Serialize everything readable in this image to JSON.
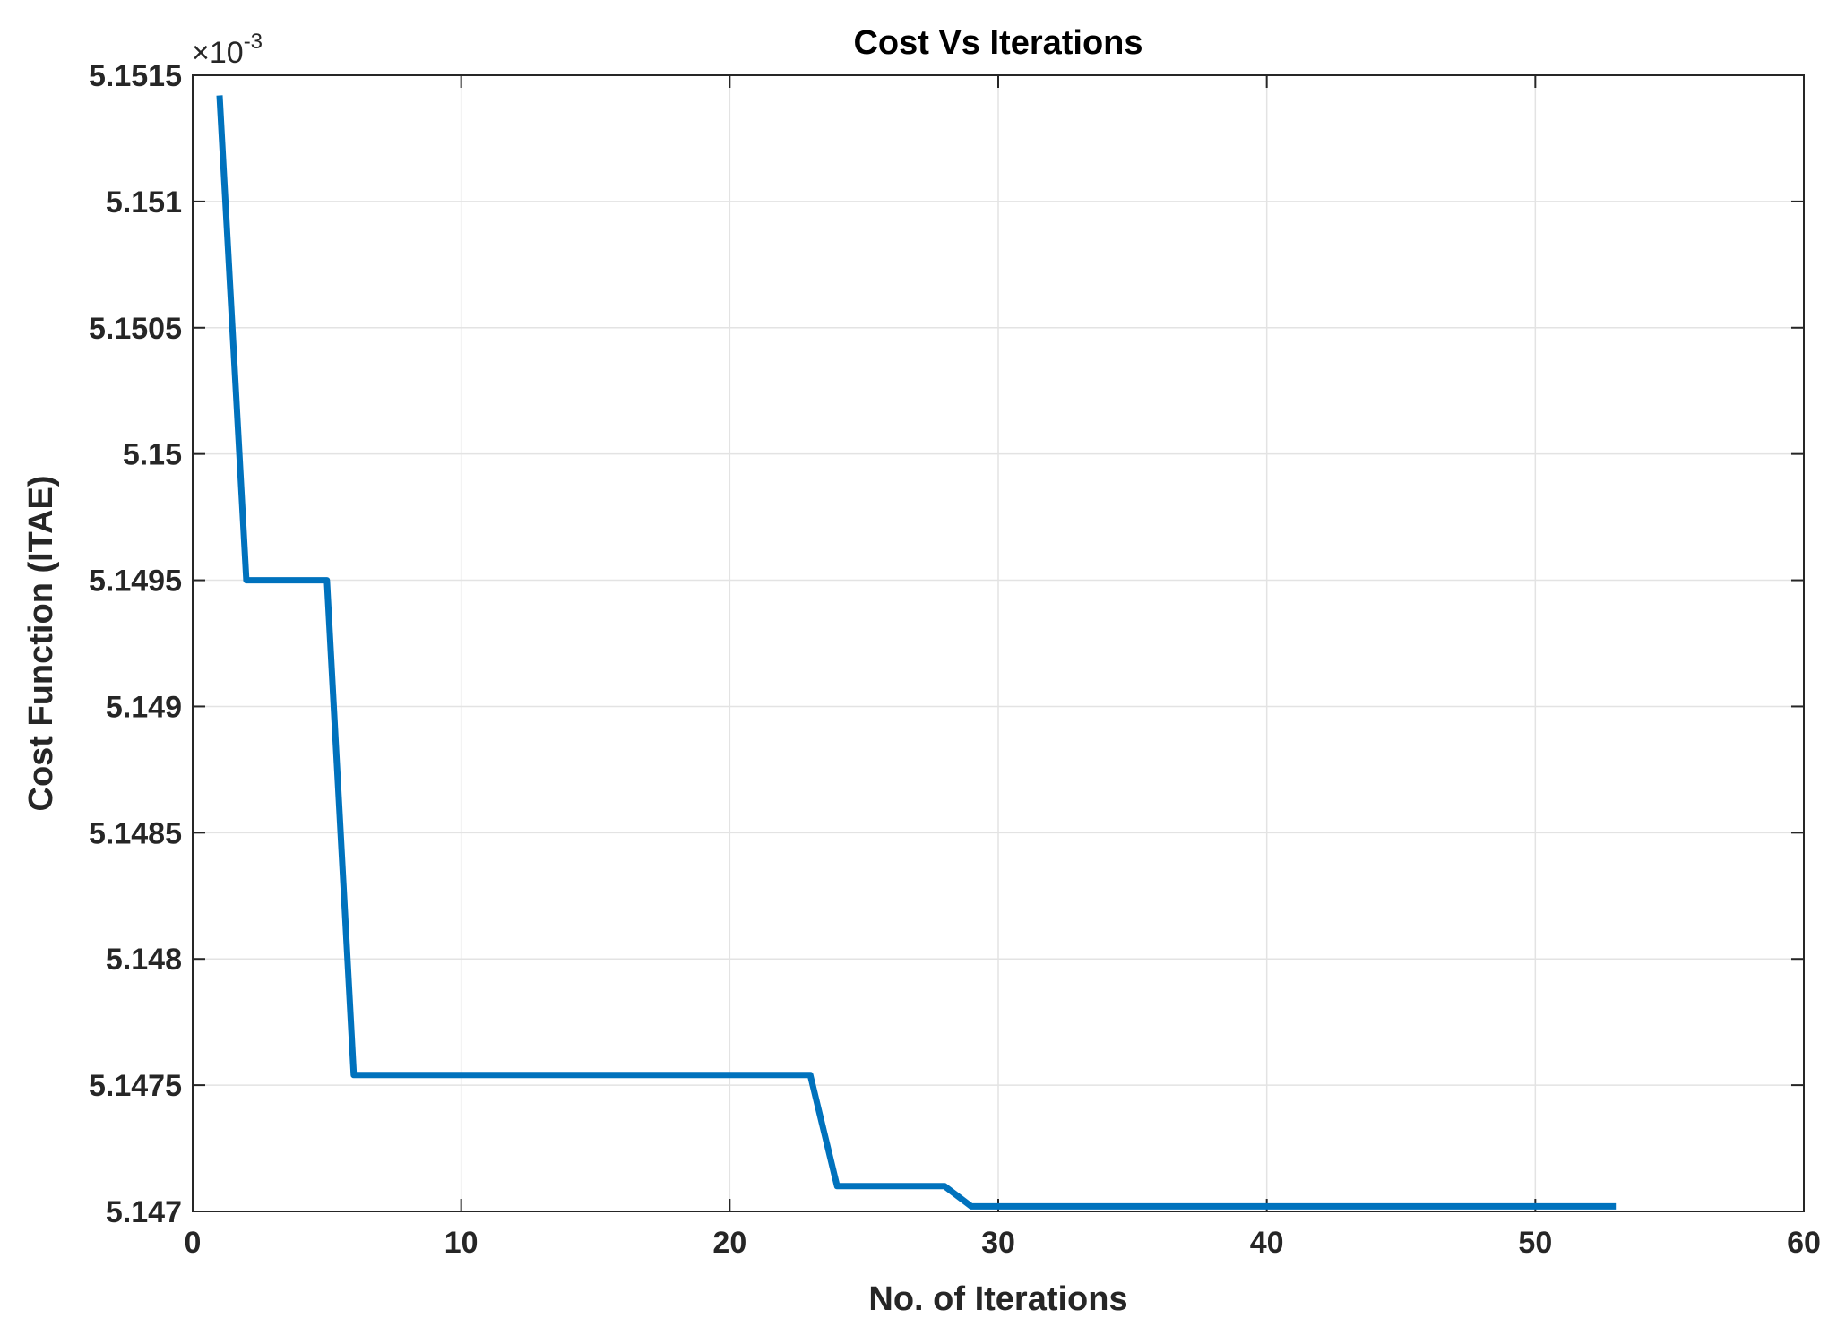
{
  "chart_data": {
    "type": "line",
    "title": "Cost Vs Iterations",
    "xlabel": "No. of Iterations",
    "ylabel": "Cost Function (ITAE)",
    "y_exponent_label": "×10",
    "y_exponent_power": "-3",
    "xlim": [
      0,
      60
    ],
    "ylim": [
      5.147,
      5.1515
    ],
    "x_ticks": [
      0,
      10,
      20,
      30,
      40,
      50,
      60
    ],
    "x_tick_labels": [
      "0",
      "10",
      "20",
      "30",
      "40",
      "50",
      "60"
    ],
    "y_ticks": [
      5.147,
      5.1475,
      5.148,
      5.1485,
      5.149,
      5.1495,
      5.15,
      5.1505,
      5.151,
      5.1515
    ],
    "y_tick_labels": [
      "5.147",
      "5.1475",
      "5.148",
      "5.1485",
      "5.149",
      "5.1495",
      "5.15",
      "5.1505",
      "5.151",
      "5.1515"
    ],
    "grid": true,
    "line_color": "#0072BD",
    "series": [
      {
        "x": [
          1,
          2,
          3,
          4,
          5,
          6,
          7,
          8,
          9,
          10,
          11,
          12,
          13,
          14,
          15,
          16,
          17,
          18,
          19,
          20,
          21,
          22,
          23,
          24,
          25,
          26,
          27,
          28,
          29,
          30,
          31,
          32,
          33,
          34,
          35,
          36,
          37,
          38,
          39,
          40,
          41,
          42,
          43,
          44,
          45,
          46,
          47,
          48,
          49,
          50,
          51,
          52,
          53
        ],
        "y": [
          5.15142,
          5.1495,
          5.1495,
          5.1495,
          5.1495,
          5.14754,
          5.14754,
          5.14754,
          5.14754,
          5.14754,
          5.14754,
          5.14754,
          5.14754,
          5.14754,
          5.14754,
          5.14754,
          5.14754,
          5.14754,
          5.14754,
          5.14754,
          5.14754,
          5.14754,
          5.14754,
          5.1471,
          5.1471,
          5.1471,
          5.1471,
          5.1471,
          5.14702,
          5.14702,
          5.14702,
          5.14702,
          5.14702,
          5.14702,
          5.14702,
          5.14702,
          5.14702,
          5.14702,
          5.14702,
          5.14702,
          5.14702,
          5.14702,
          5.14702,
          5.14702,
          5.14702,
          5.14702,
          5.14702,
          5.14702,
          5.14702,
          5.14702,
          5.14702,
          5.14702,
          5.14702
        ]
      }
    ]
  }
}
